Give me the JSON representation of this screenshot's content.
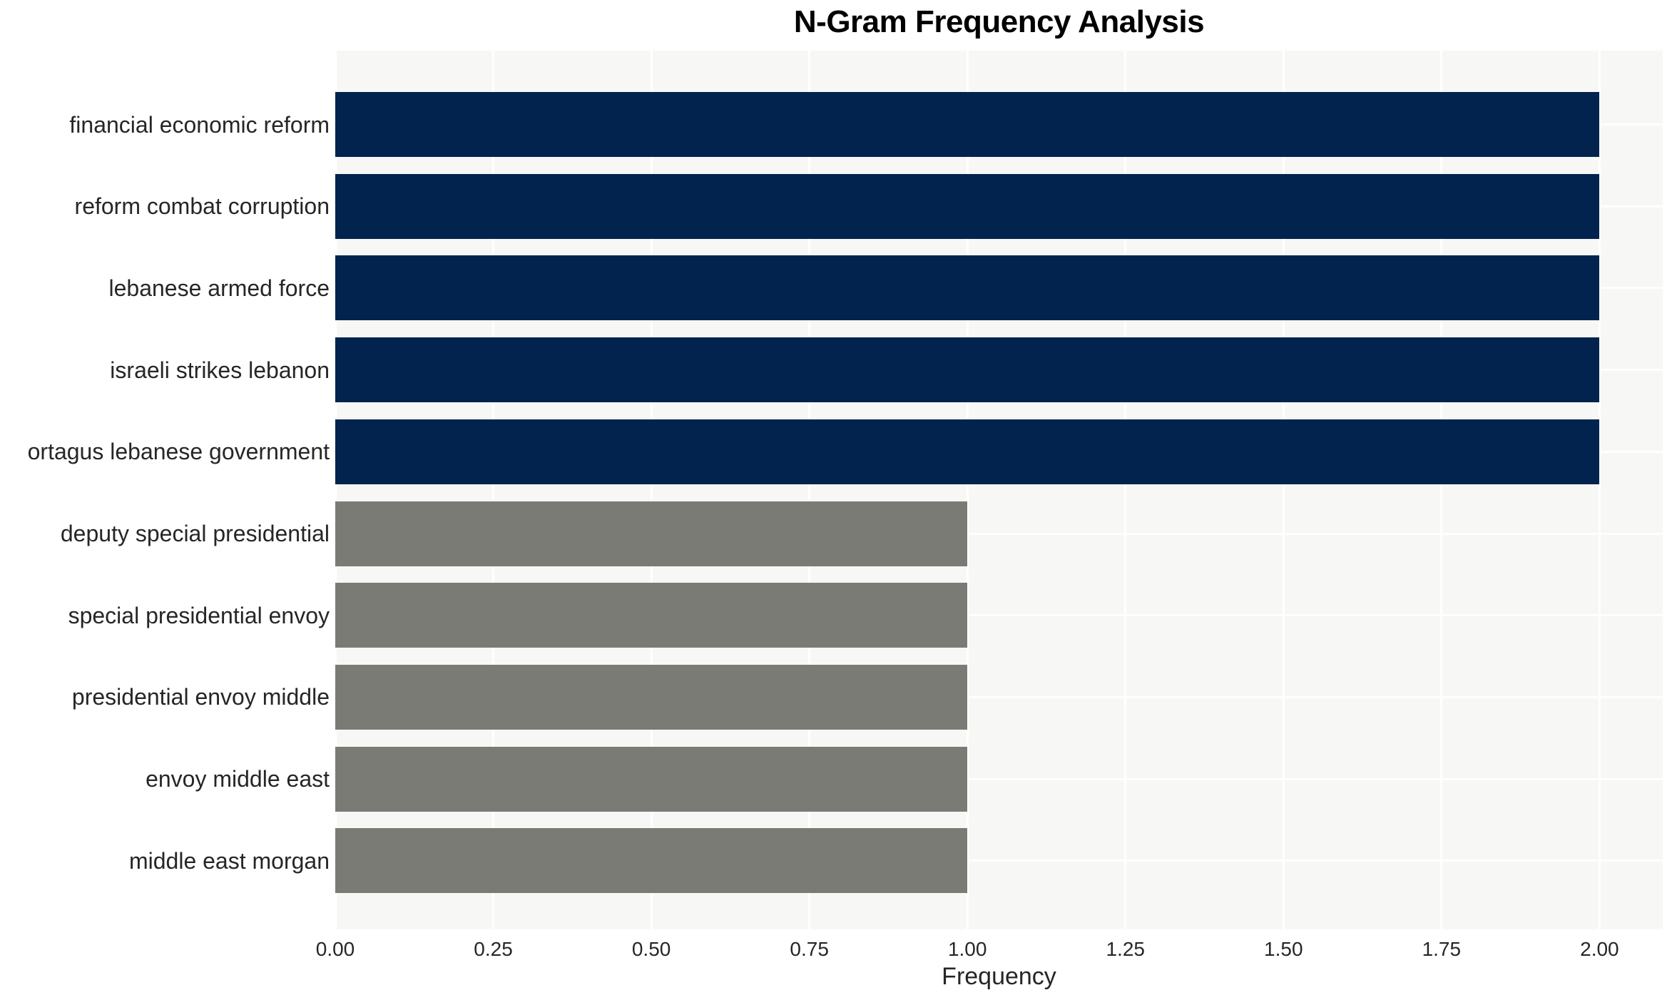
{
  "chart_data": {
    "type": "bar",
    "orientation": "horizontal",
    "title": "N-Gram Frequency Analysis",
    "xlabel": "Frequency",
    "ylabel": "",
    "categories": [
      "financial economic reform",
      "reform combat corruption",
      "lebanese armed force",
      "israeli strikes lebanon",
      "ortagus lebanese government",
      "deputy special presidential",
      "special presidential envoy",
      "presidential envoy middle",
      "envoy middle east",
      "middle east morgan"
    ],
    "values": [
      2,
      2,
      2,
      2,
      2,
      1,
      1,
      1,
      1,
      1
    ],
    "bar_colors": [
      "#02234d",
      "#02234d",
      "#02234d",
      "#02234d",
      "#02234d",
      "#7b7b76",
      "#7b7b76",
      "#7b7b76",
      "#7b7b76",
      "#7b7b76"
    ],
    "xlim": [
      0,
      2.1
    ],
    "xticks": {
      "values": [
        0,
        0.25,
        0.5,
        0.75,
        1.0,
        1.25,
        1.5,
        1.75,
        2.0
      ],
      "labels": [
        "0.00",
        "0.25",
        "0.50",
        "0.75",
        "1.00",
        "1.25",
        "1.50",
        "1.75",
        "2.00"
      ]
    },
    "grid": "on",
    "grid_color": "#ffffff",
    "plot_background": "#f7f7f5",
    "legend": "none"
  }
}
